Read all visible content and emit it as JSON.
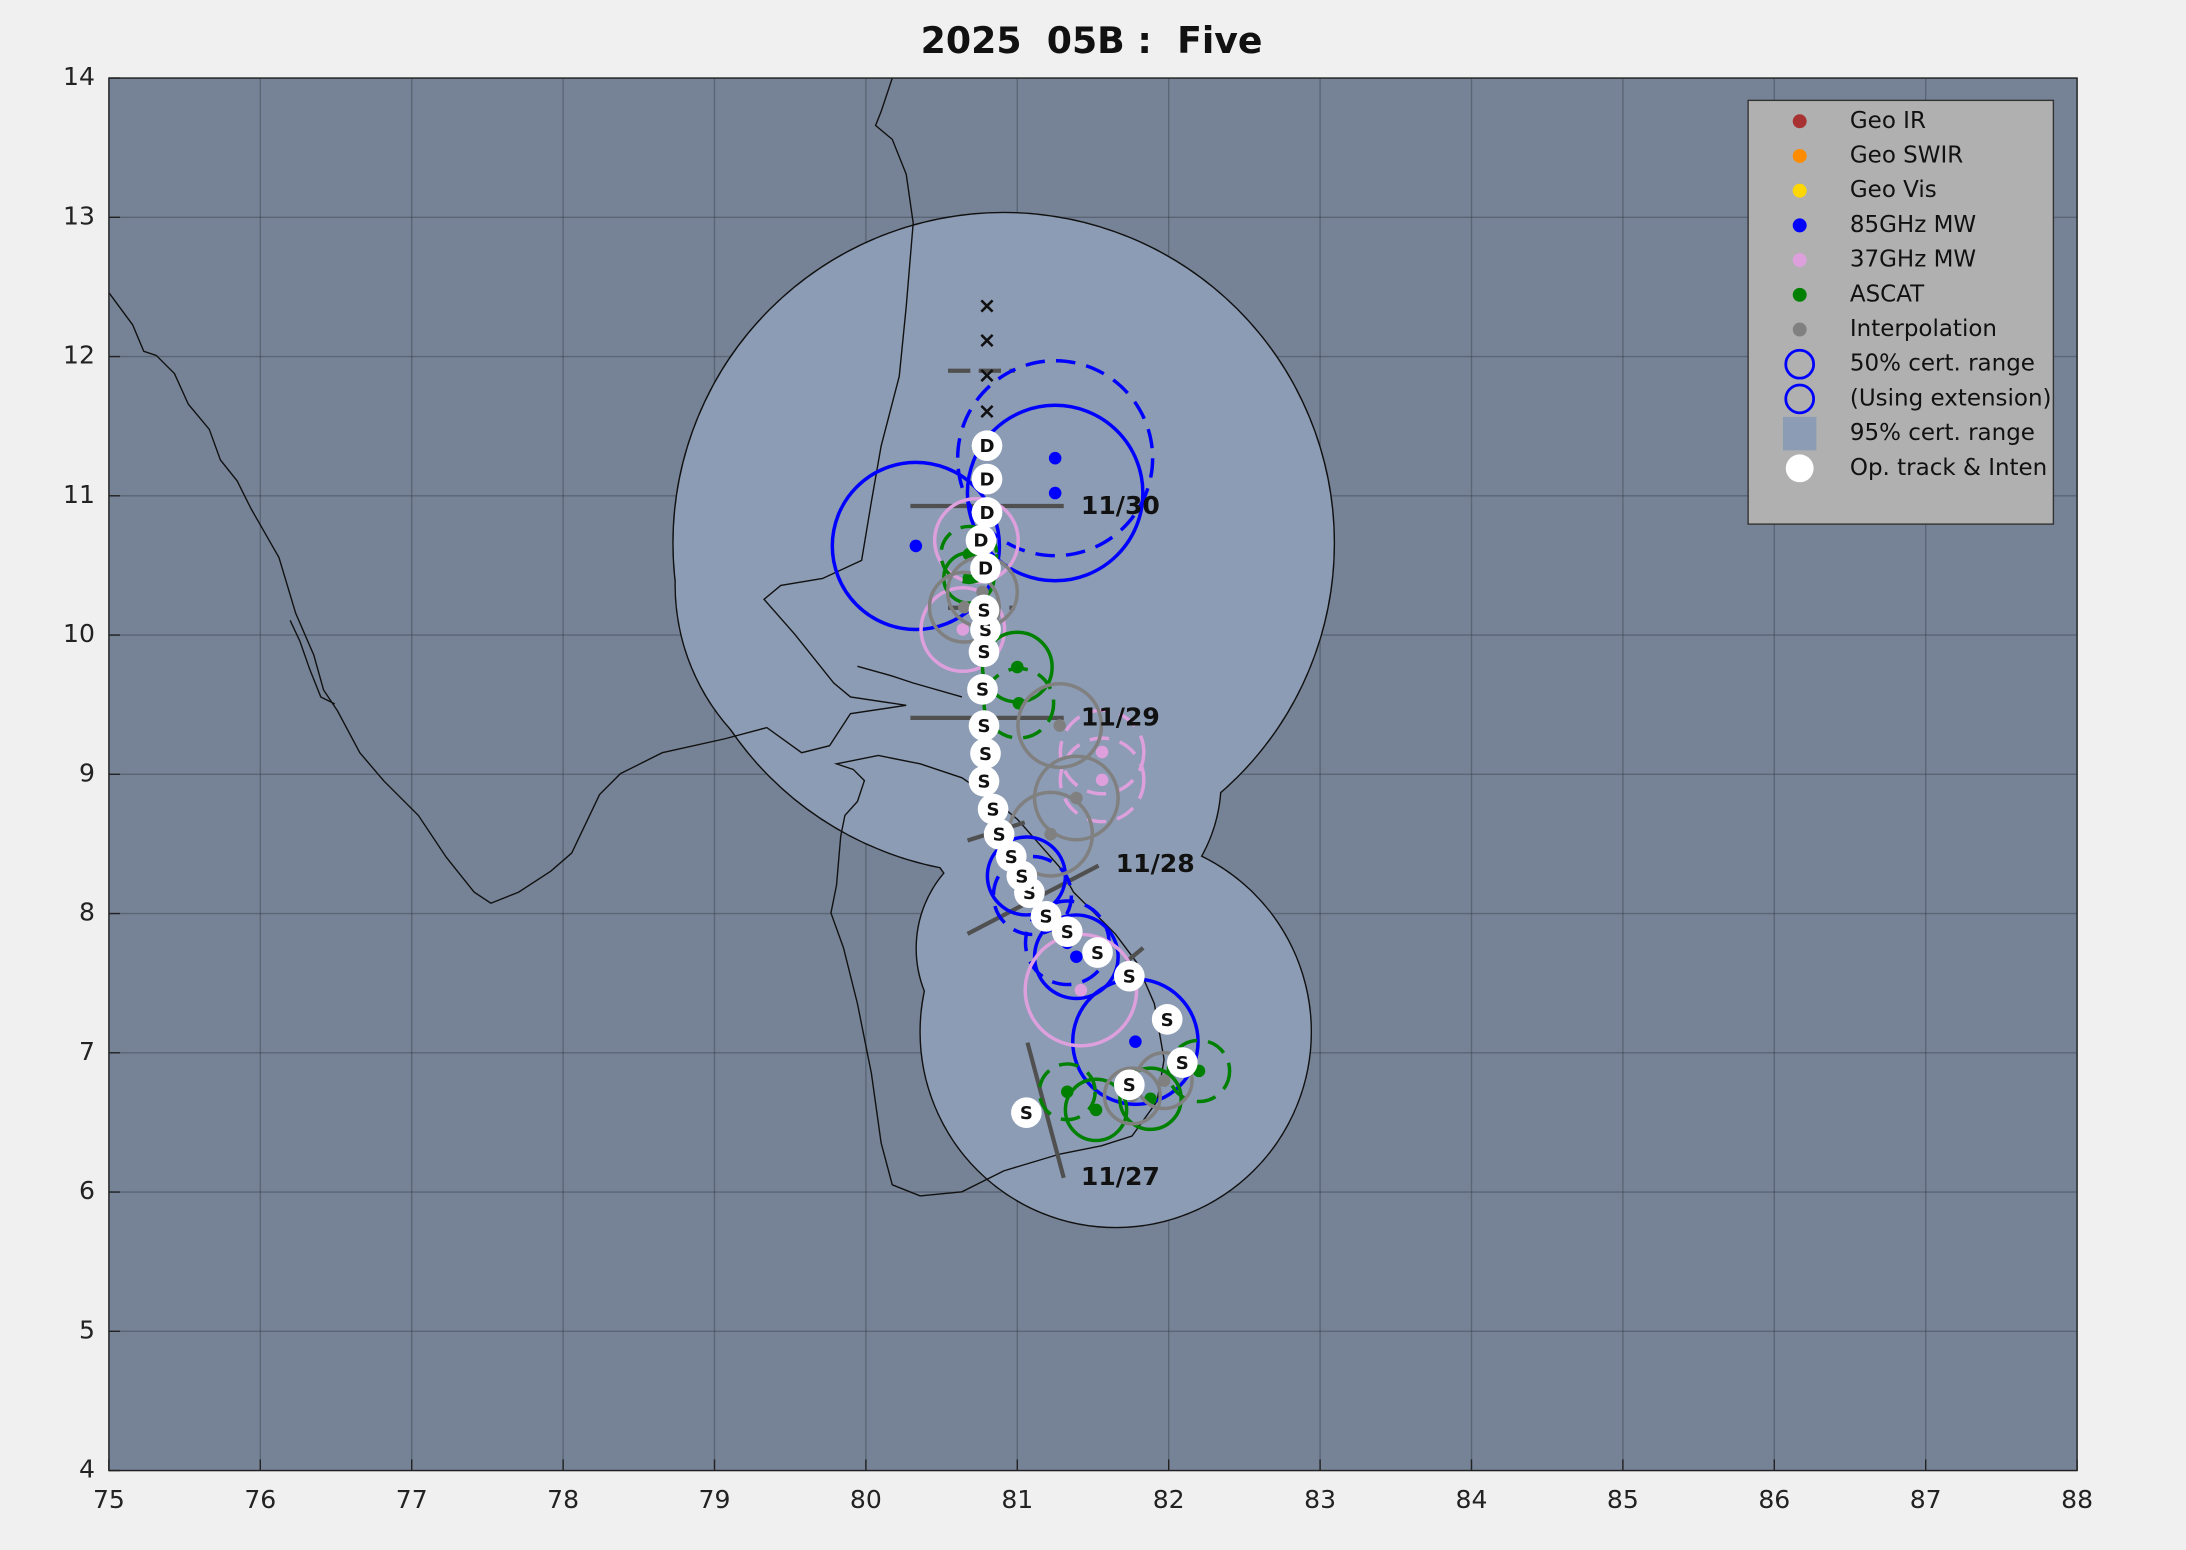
{
  "chart_data": {
    "type": "track-map",
    "title": "2025  05B :  Five",
    "xlim": [
      75,
      88
    ],
    "ylim": [
      4,
      14
    ],
    "xticks": [
      75,
      76,
      77,
      78,
      79,
      80,
      81,
      82,
      83,
      84,
      85,
      86,
      87,
      88
    ],
    "yticks": [
      4,
      5,
      6,
      7,
      8,
      9,
      10,
      11,
      12,
      13,
      14
    ],
    "grid": true,
    "legend": "upper right",
    "cert_region": {
      "name": "95% cert. range",
      "color": "#8c9cb4",
      "x": [
        80.91,
        80.17,
        81.33,
        81.65,
        81.1
      ],
      "y": [
        10.66,
        10.36,
        8.95,
        7.15,
        7.75
      ],
      "radius": [
        2.37,
        1.55,
        1.1,
        1.4,
        0.83
      ]
    },
    "series": [
      {
        "name": "Geo IR",
        "color": "#a83232",
        "x": [],
        "y": [],
        "radius": [],
        "dashed": []
      },
      {
        "name": "Geo SWIR",
        "color": "#ff8c00",
        "x": [],
        "y": [],
        "radius": [],
        "dashed": []
      },
      {
        "name": "Geo Vis",
        "color": "#ffd700",
        "x": [],
        "y": [],
        "radius": [],
        "dashed": []
      },
      {
        "name": "85GHz MW",
        "color": "#0000ff",
        "x": [
          81.25,
          81.25,
          80.33,
          81.06,
          81.1,
          81.33,
          81.39,
          81.78
        ],
        "y": [
          11.27,
          11.02,
          10.64,
          8.27,
          8.13,
          7.79,
          7.69,
          7.08
        ],
        "radius": [
          0.7,
          0.63,
          0.6,
          0.28,
          0.28,
          0.3,
          0.3,
          0.45
        ],
        "dashed": [
          true,
          false,
          false,
          false,
          true,
          true,
          false,
          false
        ]
      },
      {
        "name": "37GHz MW",
        "color": "#dda0dd",
        "x": [
          81.56,
          81.56,
          80.73,
          80.64,
          81.42
        ],
        "y": [
          9.16,
          8.96,
          10.68,
          10.04,
          7.45
        ],
        "radius": [
          0.3,
          0.3,
          0.3,
          0.3,
          0.4
        ],
        "dashed": [
          true,
          true,
          false,
          false,
          false
        ]
      },
      {
        "name": "ASCAT",
        "color": "#008000",
        "x": [
          81.0,
          81.01,
          80.68,
          80.68,
          81.33,
          81.52,
          81.88,
          82.2
        ],
        "y": [
          9.77,
          9.51,
          10.58,
          10.41,
          6.72,
          6.59,
          6.67,
          6.87
        ],
        "radius": [
          0.25,
          0.25,
          0.2,
          0.18,
          0.2,
          0.22,
          0.22,
          0.22
        ],
        "dashed": [
          false,
          true,
          true,
          false,
          true,
          false,
          false,
          true
        ]
      },
      {
        "name": "Interpolation",
        "color": "#808080",
        "x": [
          81.28,
          81.39,
          81.22,
          80.65,
          81.76,
          81.97,
          80.77
        ],
        "y": [
          9.35,
          8.83,
          8.57,
          10.2,
          6.69,
          6.8,
          10.31
        ],
        "radius": [
          0.3,
          0.3,
          0.3,
          0.25,
          0.2,
          0.2,
          0.25
        ],
        "dashed": [
          false,
          false,
          false,
          false,
          false,
          false,
          false
        ]
      }
    ],
    "cert_keys": [
      {
        "name": "50% cert. range",
        "color": "#0000ff"
      },
      {
        "name": "(Using extension)",
        "color": "#0000ff"
      }
    ],
    "op_track": {
      "name": "Op. track & Inten",
      "color": "#ffffff",
      "x": [
        81.06,
        81.74,
        82.09,
        81.99,
        81.74,
        81.53,
        81.33,
        81.19,
        81.08,
        81.03,
        80.96,
        80.88,
        80.84,
        80.78,
        80.79,
        80.78,
        80.77,
        80.78,
        80.79,
        80.78,
        80.79,
        80.76,
        80.8,
        80.8,
        80.8
      ],
      "y": [
        6.57,
        6.77,
        6.93,
        7.24,
        7.55,
        7.72,
        7.87,
        7.98,
        8.15,
        8.27,
        8.41,
        8.57,
        8.75,
        8.95,
        9.15,
        9.35,
        9.61,
        9.88,
        10.04,
        10.18,
        10.48,
        10.68,
        10.88,
        11.12,
        11.36
      ],
      "labels": [
        "S",
        "S",
        "S",
        "S",
        "S",
        "S",
        "S",
        "S",
        "S",
        "S",
        "S",
        "S",
        "S",
        "S",
        "S",
        "S",
        "S",
        "S",
        "S",
        "S",
        "D",
        "D",
        "D",
        "D",
        "D"
      ]
    },
    "op_track_future": {
      "x": [
        80.8,
        80.8,
        80.8,
        80.8
      ],
      "y": [
        11.6,
        11.86,
        12.11,
        12.36
      ],
      "labels": [
        "×",
        "×",
        "×",
        "×"
      ]
    },
    "annotations": [
      {
        "text": "11/27",
        "x": 81.42,
        "y": 6.1
      },
      {
        "text": "11/28",
        "x": 81.65,
        "y": 8.35
      },
      {
        "text": "11/29",
        "x": 81.42,
        "y": 9.4
      },
      {
        "text": "11/30",
        "x": 81.42,
        "y": 10.92
      }
    ]
  }
}
